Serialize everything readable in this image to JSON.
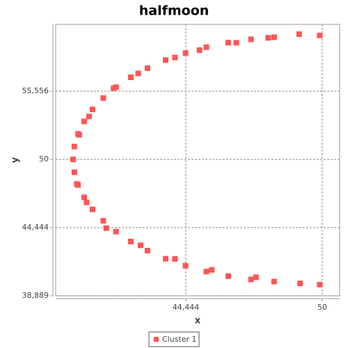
{
  "chart_data": {
    "type": "scatter",
    "title": "halfmoon",
    "x_label": "x",
    "y_label": "y",
    "x": [
      48.04,
      47.1,
      46.17,
      45.28,
      44.43,
      43.62,
      42.88,
      42.2,
      41.6,
      41.08,
      40.64,
      40.3,
      40.05,
      39.9,
      39.85,
      39.9,
      40.05,
      40.3,
      40.64,
      41.08,
      41.6,
      42.2,
      42.88,
      43.62,
      44.43,
      45.28,
      46.17,
      47.1,
      48.04,
      49.06,
      49.1,
      49.9,
      49.9,
      44.0,
      45.0,
      46.5,
      47.8,
      42.5,
      41.5,
      40.5,
      40.1,
      40.0,
      40.4,
      41.2,
      42.6,
      44.0,
      45.5,
      47.3
    ],
    "series": [
      {
        "name": "Cluster 1",
        "color": "#ff5555",
        "values": [
          40.05,
          40.22,
          40.49,
          40.86,
          41.34,
          41.91,
          42.57,
          43.31,
          44.12,
          45.0,
          45.93,
          46.91,
          47.92,
          48.95,
          50,
          51.05,
          52.08,
          53.09,
          54.07,
          55.0,
          55.88,
          56.69,
          57.43,
          58.09,
          58.66,
          59.14,
          59.51,
          59.78,
          59.95,
          60.2,
          39.9,
          60.1,
          39.8,
          58.3,
          58.9,
          59.5,
          59.9,
          57.0,
          55.8,
          53.5,
          52,
          48,
          46.5,
          44.4,
          43.0,
          41.9,
          41.0,
          40.4
        ]
      }
    ],
    "xlim": [
      39.14,
      50.71
    ],
    "ylim": [
      38.889,
      61.0
    ],
    "xticks": [
      {
        "value": 44.444,
        "label": "44,444"
      },
      50
    ],
    "yticks": [
      {
        "value": 38.889,
        "label": "38,889"
      },
      {
        "value": 44.444,
        "label": "44,444"
      },
      50,
      {
        "value": 55.556,
        "label": "55,556"
      }
    ],
    "grid": true
  }
}
